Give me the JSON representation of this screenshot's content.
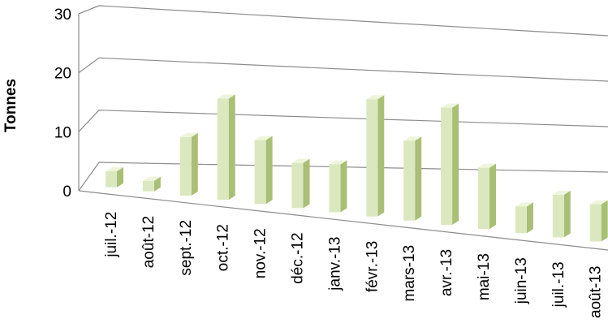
{
  "chart_data": {
    "type": "bar",
    "title": "",
    "xlabel": "",
    "ylabel": "Tonnes",
    "ylim": [
      0,
      30
    ],
    "yticks": [
      0,
      10,
      20,
      30
    ],
    "grid": true,
    "style": "3d-perspective",
    "colors": {
      "bar_front": "#dbe8bf",
      "bar_side": "#a9bf76",
      "bar_top": "#eef5dc",
      "grid": "#8c8c8c"
    },
    "categories": [
      "juil.-12",
      "août-12",
      "sept.-12",
      "oct.-12",
      "nov.-12",
      "déc.-12",
      "janv.-13",
      "févr.-13",
      "mars-13",
      "avr.-13",
      "mai-13",
      "juin-13",
      "juil.-13",
      "août-13"
    ],
    "values": [
      3,
      2,
      11,
      19,
      12,
      8.5,
      9,
      22,
      15,
      22,
      11.5,
      5,
      8,
      7
    ]
  }
}
